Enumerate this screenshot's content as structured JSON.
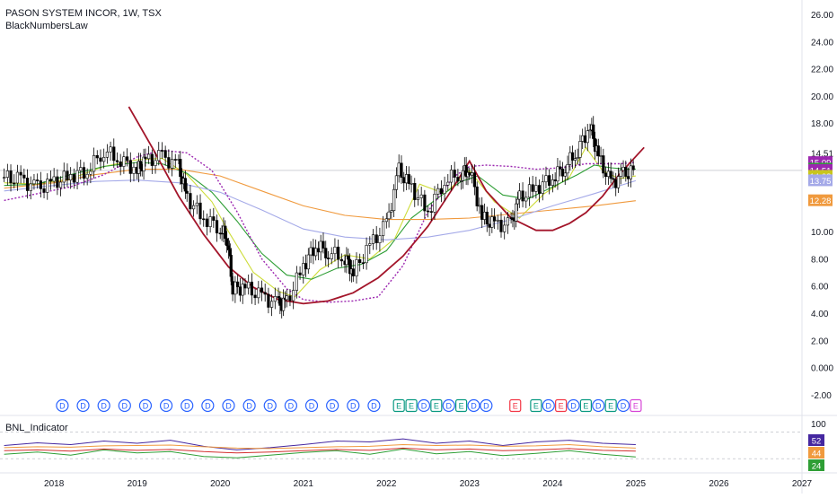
{
  "header": {
    "title": "PASON SYSTEM INCOR, 1W, TSX",
    "indicator_name": "BlackNumbersLaw"
  },
  "sub_panel": {
    "label": "BNL_Indicator"
  },
  "colors": {
    "up_candle": "#ffffff",
    "down_candle": "#000000",
    "curve": "#a3152a",
    "dotted": "#9c27b0",
    "ma_yellow": "#cddc39",
    "ma_green": "#2e9e35",
    "ma_orange": "#f09a3e",
    "ma_blue": "#a4a9e8",
    "dividend_badge": "#2962ff",
    "earnings_badge_green": "#089981",
    "earnings_badge_red": "#f23645",
    "earnings_badge_purple": "#d643d6",
    "grid": "#f0f3fa",
    "axis_text": "#131722"
  },
  "chart_data": [
    {
      "type": "line",
      "title": "PASON SYSTEM INCOR, 1W, TSX",
      "subtitle": "BlackNumbersLaw",
      "xlabel": "",
      "ylabel": "",
      "x_ticks": [
        "2018",
        "2019",
        "2020",
        "2021",
        "2022",
        "2023",
        "2024",
        "2025",
        "2026",
        "2027"
      ],
      "y_ticks": [
        "26.00",
        "24.00",
        "22.00",
        "20.00",
        "18.00",
        "14.51",
        "10.00",
        "8.00",
        "6.00",
        "4.00",
        "2.00",
        "0.000",
        "-2.00"
      ],
      "ylim": [
        -2.5,
        27
      ],
      "grid": false,
      "price_line": 14.51,
      "series": [
        {
          "type": "candlestick-close",
          "x": [
            2017.4,
            2017.6,
            2017.8,
            2018.0,
            2018.2,
            2018.4,
            2018.6,
            2018.8,
            2019.0,
            2019.1,
            2019.3,
            2019.5,
            2019.6,
            2019.8,
            2020.0,
            2020.1,
            2020.15,
            2020.3,
            2020.5,
            2020.7,
            2020.8,
            2021.0,
            2021.15,
            2021.3,
            2021.5,
            2021.6,
            2021.8,
            2022.0,
            2022.15,
            2022.3,
            2022.5,
            2022.7,
            2022.9,
            2023.0,
            2023.15,
            2023.3,
            2023.5,
            2023.6,
            2023.8,
            2024.0,
            2024.15,
            2024.3,
            2024.45,
            2024.55,
            2024.7,
            2024.85,
            2025.0
          ],
          "values": [
            14.0,
            13.8,
            13.2,
            13.6,
            14.1,
            14.5,
            16.0,
            15.3,
            14.5,
            15.2,
            15.5,
            14.8,
            12.5,
            11.0,
            10.3,
            9.2,
            5.8,
            5.9,
            5.2,
            4.6,
            4.8,
            7.5,
            9.0,
            8.5,
            8.1,
            7.0,
            9.0,
            10.5,
            14.5,
            13.2,
            11.5,
            13.8,
            14.3,
            14.6,
            11.0,
            10.5,
            10.5,
            12.5,
            13.2,
            14.0,
            14.8,
            16.0,
            17.8,
            15.5,
            13.5,
            14.2,
            14.5
          ]
        },
        {
          "name": "",
          "type": "curve",
          "x": [
            2018.9,
            2019.2,
            2019.5,
            2019.8,
            2020.1,
            2020.4,
            2020.7,
            2021.0,
            2021.3,
            2021.6,
            2021.9,
            2022.2,
            2022.5,
            2022.8,
            2023.0,
            2023.2,
            2023.5,
            2023.8,
            2024.0,
            2024.2,
            2024.4,
            2024.6,
            2024.8,
            2025.1
          ],
          "values": [
            19.2,
            16.0,
            12.6,
            9.8,
            7.4,
            5.9,
            5.0,
            4.7,
            4.9,
            5.5,
            6.6,
            8.2,
            10.4,
            13.2,
            15.2,
            13.0,
            11.0,
            10.1,
            10.1,
            10.6,
            11.4,
            12.6,
            14.2,
            16.2
          ]
        },
        {
          "name": "",
          "type": "dotted",
          "x": [
            2017.4,
            2017.8,
            2018.2,
            2018.6,
            2019.0,
            2019.3,
            2019.6,
            2019.9,
            2020.2,
            2020.5,
            2020.8,
            2021.0,
            2021.3,
            2021.6,
            2021.9,
            2022.2,
            2022.5,
            2022.8,
            2023.0,
            2023.2,
            2023.5,
            2023.8,
            2024.1,
            2024.4,
            2024.6,
            2024.8,
            2025.0
          ],
          "values": [
            12.3,
            12.8,
            13.3,
            14.2,
            15.5,
            16.0,
            15.8,
            14.5,
            11.5,
            8.0,
            5.8,
            5.0,
            4.8,
            4.9,
            5.2,
            7.5,
            11.5,
            14.0,
            14.8,
            14.9,
            14.8,
            14.6,
            14.7,
            15.0,
            15.0,
            15.0,
            15.1
          ]
        },
        {
          "name": "",
          "type": "ma",
          "x": [
            2017.4,
            2017.8,
            2018.2,
            2018.6,
            2019.0,
            2019.3,
            2019.6,
            2019.9,
            2020.1,
            2020.4,
            2020.7,
            2020.9,
            2021.2,
            2021.5,
            2021.8,
            2022.1,
            2022.4,
            2022.7,
            2023.0,
            2023.3,
            2023.6,
            2023.9,
            2024.2,
            2024.4,
            2024.6,
            2024.8,
            2025.0
          ],
          "values": [
            13.6,
            13.5,
            13.9,
            14.8,
            15.3,
            15.4,
            14.2,
            12.2,
            10.0,
            7.0,
            5.6,
            5.2,
            7.2,
            8.3,
            8.0,
            9.5,
            13.5,
            12.8,
            14.5,
            12.2,
            11.0,
            12.8,
            14.0,
            16.2,
            14.5,
            13.9,
            14.1
          ]
        },
        {
          "name": "",
          "type": "ma",
          "x": [
            2017.4,
            2017.8,
            2018.2,
            2018.6,
            2019.0,
            2019.3,
            2019.6,
            2019.9,
            2020.2,
            2020.5,
            2020.8,
            2021.1,
            2021.4,
            2021.7,
            2022.0,
            2022.3,
            2022.6,
            2022.9,
            2023.1,
            2023.4,
            2023.7,
            2024.0,
            2024.3,
            2024.5,
            2024.7,
            2024.9,
            2025.0
          ],
          "values": [
            13.4,
            13.5,
            14.2,
            14.8,
            15.1,
            15.0,
            14.3,
            12.9,
            10.8,
            8.4,
            6.8,
            6.5,
            7.3,
            7.6,
            8.6,
            11.0,
            12.4,
            13.7,
            14.1,
            12.7,
            12.4,
            13.3,
            14.2,
            14.9,
            14.7,
            14.6,
            14.61
          ]
        },
        {
          "name": "",
          "type": "ma",
          "x": [
            2017.4,
            2018.0,
            2018.5,
            2019.0,
            2019.5,
            2020.0,
            2020.5,
            2021.0,
            2021.5,
            2022.0,
            2022.5,
            2023.0,
            2023.5,
            2024.0,
            2024.5,
            2025.0
          ],
          "values": [
            13.2,
            13.6,
            14.2,
            14.6,
            14.6,
            14.1,
            13.0,
            11.9,
            11.2,
            10.9,
            10.9,
            11.0,
            11.3,
            11.6,
            11.9,
            12.28
          ]
        },
        {
          "name": "",
          "type": "ma",
          "x": [
            2017.4,
            2018.0,
            2018.5,
            2019.0,
            2019.5,
            2020.0,
            2020.5,
            2021.0,
            2021.5,
            2022.0,
            2022.5,
            2023.0,
            2023.5,
            2024.0,
            2024.5,
            2025.0
          ],
          "values": [
            13.0,
            13.4,
            13.7,
            13.8,
            13.6,
            12.9,
            11.6,
            10.2,
            9.6,
            9.4,
            9.6,
            10.1,
            10.9,
            11.9,
            12.8,
            13.75
          ]
        }
      ],
      "price_tags": [
        {
          "label": "15.09",
          "value": 15.09,
          "color": "#9c27b0"
        },
        {
          "label": "14.61",
          "value": 14.61,
          "color": "#2e9e35"
        },
        {
          "label": "14.51",
          "value": 14.51,
          "color": "#9c27b0"
        },
        {
          "label": "1d 4h",
          "value": 14.0,
          "color": "#9c27b0"
        },
        {
          "label": "14.08",
          "value": 14.08,
          "color": "#c8c51e"
        },
        {
          "label": "13.75",
          "value": 13.75,
          "color": "#a4a9e8"
        },
        {
          "label": "12.28",
          "value": 12.28,
          "color": "#f09a3e"
        }
      ],
      "event_badges": [
        {
          "x": 2018.1,
          "label": "D",
          "kind": "dividend"
        },
        {
          "x": 2018.35,
          "label": "D",
          "kind": "dividend"
        },
        {
          "x": 2018.6,
          "label": "D",
          "kind": "dividend"
        },
        {
          "x": 2018.85,
          "label": "D",
          "kind": "dividend"
        },
        {
          "x": 2019.1,
          "label": "D",
          "kind": "dividend"
        },
        {
          "x": 2019.35,
          "label": "D",
          "kind": "dividend"
        },
        {
          "x": 2019.6,
          "label": "D",
          "kind": "dividend"
        },
        {
          "x": 2019.85,
          "label": "D",
          "kind": "dividend"
        },
        {
          "x": 2020.1,
          "label": "D",
          "kind": "dividend"
        },
        {
          "x": 2020.35,
          "label": "D",
          "kind": "dividend"
        },
        {
          "x": 2020.6,
          "label": "D",
          "kind": "dividend"
        },
        {
          "x": 2020.85,
          "label": "D",
          "kind": "dividend"
        },
        {
          "x": 2021.1,
          "label": "D",
          "kind": "dividend"
        },
        {
          "x": 2021.35,
          "label": "D",
          "kind": "dividend"
        },
        {
          "x": 2021.6,
          "label": "D",
          "kind": "dividend"
        },
        {
          "x": 2021.85,
          "label": "D",
          "kind": "dividend"
        },
        {
          "x": 2022.15,
          "label": "E",
          "kind": "earnings-green"
        },
        {
          "x": 2022.3,
          "label": "E",
          "kind": "earnings-green"
        },
        {
          "x": 2022.45,
          "label": "D",
          "kind": "dividend"
        },
        {
          "x": 2022.6,
          "label": "E",
          "kind": "earnings-green"
        },
        {
          "x": 2022.75,
          "label": "D",
          "kind": "dividend"
        },
        {
          "x": 2022.9,
          "label": "E",
          "kind": "earnings-green"
        },
        {
          "x": 2023.05,
          "label": "D",
          "kind": "dividend"
        },
        {
          "x": 2023.2,
          "label": "D",
          "kind": "dividend"
        },
        {
          "x": 2023.55,
          "label": "E",
          "kind": "earnings-red"
        },
        {
          "x": 2023.8,
          "label": "E",
          "kind": "earnings-green"
        },
        {
          "x": 2023.95,
          "label": "D",
          "kind": "dividend"
        },
        {
          "x": 2024.1,
          "label": "E",
          "kind": "earnings-red"
        },
        {
          "x": 2024.25,
          "label": "D",
          "kind": "dividend"
        },
        {
          "x": 2024.4,
          "label": "E",
          "kind": "earnings-green"
        },
        {
          "x": 2024.55,
          "label": "D",
          "kind": "dividend"
        },
        {
          "x": 2024.7,
          "label": "E",
          "kind": "earnings-green"
        },
        {
          "x": 2024.85,
          "label": "D",
          "kind": "dividend"
        },
        {
          "x": 2025.0,
          "label": "E",
          "kind": "earnings-purple"
        }
      ]
    },
    {
      "type": "line",
      "title": "BNL_Indicator",
      "ylim": [
        0,
        110
      ],
      "y_ticks": [
        "100"
      ],
      "grid": false,
      "series": [
        {
          "name": "",
          "color": "#4527a0",
          "x": [
            2017.4,
            2017.8,
            2018.2,
            2018.6,
            2019.0,
            2019.4,
            2019.8,
            2020.2,
            2020.6,
            2021.0,
            2021.4,
            2021.8,
            2022.2,
            2022.6,
            2023.0,
            2023.4,
            2023.8,
            2024.2,
            2024.6,
            2025.0
          ],
          "values": [
            50,
            56,
            52,
            60,
            55,
            62,
            48,
            40,
            45,
            52,
            60,
            58,
            65,
            55,
            60,
            50,
            58,
            62,
            55,
            52
          ]
        },
        {
          "name": "",
          "color": "#f09a3e",
          "x": [
            2017.4,
            2017.8,
            2018.2,
            2018.6,
            2019.0,
            2019.4,
            2019.8,
            2020.2,
            2020.6,
            2021.0,
            2021.4,
            2021.8,
            2022.2,
            2022.6,
            2023.0,
            2023.4,
            2023.8,
            2024.2,
            2024.6,
            2025.0
          ],
          "values": [
            45,
            47,
            46,
            49,
            50,
            51,
            47,
            44,
            43,
            45,
            47,
            48,
            52,
            50,
            51,
            48,
            49,
            52,
            47,
            44
          ]
        },
        {
          "name": "",
          "color": "#2e9e35",
          "x": [
            2017.4,
            2017.8,
            2018.2,
            2018.6,
            2019.0,
            2019.4,
            2019.8,
            2020.2,
            2020.6,
            2021.0,
            2021.4,
            2021.8,
            2022.2,
            2022.6,
            2023.0,
            2023.4,
            2023.8,
            2024.2,
            2024.6,
            2025.0
          ],
          "values": [
            30,
            35,
            28,
            40,
            33,
            36,
            25,
            22,
            28,
            34,
            38,
            30,
            42,
            31,
            36,
            27,
            32,
            38,
            30,
            24
          ]
        },
        {
          "name": "",
          "color": "#d32f2f",
          "x": [
            2017.4,
            2017.8,
            2018.2,
            2018.6,
            2019.0,
            2019.4,
            2019.8,
            2020.2,
            2020.6,
            2021.0,
            2021.4,
            2021.8,
            2022.2,
            2022.6,
            2023.0,
            2023.4,
            2023.8,
            2024.2,
            2024.6,
            2025.0
          ],
          "values": [
            38,
            40,
            37,
            42,
            39,
            41,
            36,
            33,
            35,
            38,
            41,
            39,
            44,
            40,
            42,
            38,
            40,
            43,
            39,
            37
          ]
        }
      ],
      "value_tags": [
        {
          "label": "52",
          "color": "#4527a0"
        },
        {
          "label": "44",
          "color": "#f09a3e"
        },
        {
          "label": "24",
          "color": "#2e9e35"
        }
      ]
    }
  ]
}
